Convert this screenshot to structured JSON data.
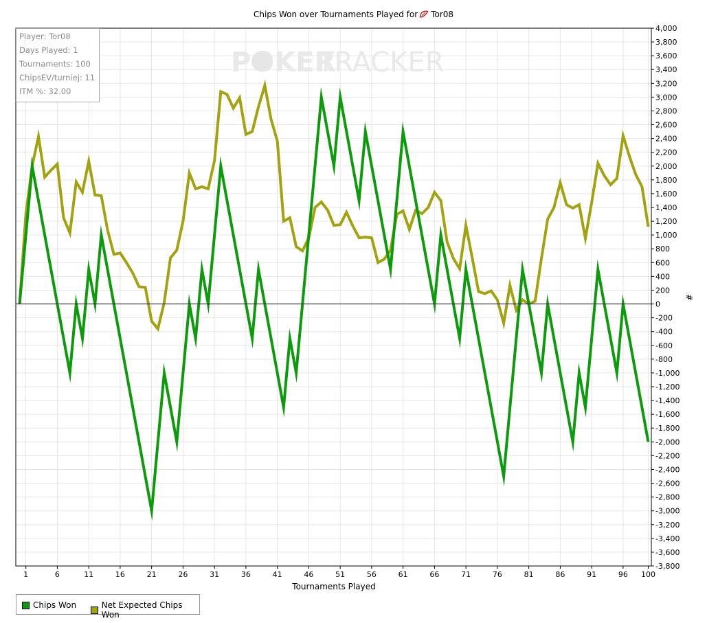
{
  "title": "Chips Won over Tournaments Played for",
  "player_name": "Tor08",
  "watermark": {
    "left": "POKER",
    "right": "TRACKER"
  },
  "stats": [
    "Player: Tor08",
    "Days Played: 1",
    "Tournaments: 100",
    "ChipsEV/turniej: 11",
    "ITM %: 32.00"
  ],
  "legend": [
    {
      "label": "Chips Won",
      "color": "#0d9b0d"
    },
    {
      "label": "Net Expected Chips Won",
      "color": "#a3a312"
    }
  ],
  "colors": {
    "axis": "#000000",
    "grid": "#e6e6e6",
    "zero_line": "#000000",
    "stats_text": "#8c8c8c"
  },
  "chart_data": {
    "type": "line",
    "title": "Chips Won over Tournaments Played for Tor08",
    "xlabel": "Tournaments Played",
    "ylabel": "#",
    "xlim": [
      0,
      101
    ],
    "ylim": [
      -3800,
      4000
    ],
    "x_ticks": [
      1,
      6,
      11,
      16,
      21,
      26,
      31,
      36,
      41,
      46,
      51,
      56,
      61,
      66,
      71,
      76,
      81,
      86,
      91,
      96,
      100
    ],
    "y_ticks": [
      4000,
      3800,
      3600,
      3400,
      3200,
      3000,
      2800,
      2600,
      2400,
      2200,
      2000,
      1800,
      1600,
      1400,
      1200,
      1000,
      800,
      600,
      400,
      200,
      0,
      -200,
      -400,
      -600,
      -800,
      -1000,
      -1200,
      -1400,
      -1600,
      -1800,
      -2000,
      -2200,
      -2400,
      -2600,
      -2800,
      -3000,
      -3200,
      -3400,
      -3600,
      -3800
    ],
    "y_tick_labels": [
      "4,000",
      "3,800",
      "3,600",
      "3,400",
      "3,200",
      "3,000",
      "2,800",
      "2,600",
      "2,400",
      "2,200",
      "2,000",
      "1,800",
      "1,600",
      "1,400",
      "1,200",
      "1,000",
      "800",
      "600",
      "400",
      "200",
      "0",
      "-200",
      "-400",
      "-600",
      "-800",
      "-1,000",
      "-1,200",
      "-1,400",
      "-1,600",
      "-1,800",
      "-2,000",
      "-2,200",
      "-2,400",
      "-2,600",
      "-2,800",
      "-3,000",
      "-3,200",
      "-3,400",
      "-3,600",
      "-3,800"
    ],
    "grid": true,
    "legend_position": "bottom-left",
    "series": [
      {
        "name": "Chips Won",
        "color": "#0d9b0d",
        "points": [
          [
            0,
            0
          ],
          [
            2,
            2000
          ],
          [
            8,
            -1000
          ],
          [
            9,
            0
          ],
          [
            10,
            -500
          ],
          [
            11,
            500
          ],
          [
            12,
            0
          ],
          [
            13,
            1000
          ],
          [
            21,
            -3000
          ],
          [
            23,
            -1000
          ],
          [
            25,
            -2000
          ],
          [
            27,
            0
          ],
          [
            28,
            -500
          ],
          [
            29,
            500
          ],
          [
            30,
            0
          ],
          [
            32,
            2000
          ],
          [
            37,
            -500
          ],
          [
            38,
            500
          ],
          [
            42,
            -1500
          ],
          [
            43,
            -500
          ],
          [
            44,
            -1000
          ],
          [
            48,
            3000
          ],
          [
            50,
            2000
          ],
          [
            51,
            3000
          ],
          [
            54,
            1500
          ],
          [
            55,
            2500
          ],
          [
            59,
            500
          ],
          [
            61,
            2500
          ],
          [
            66,
            0
          ],
          [
            67,
            1000
          ],
          [
            70,
            -500
          ],
          [
            71,
            500
          ],
          [
            77,
            -2500
          ],
          [
            80,
            500
          ],
          [
            83,
            -1000
          ],
          [
            84,
            0
          ],
          [
            88,
            -2000
          ],
          [
            89,
            -1000
          ],
          [
            90,
            -1500
          ],
          [
            92,
            500
          ],
          [
            95,
            -1000
          ],
          [
            96,
            0
          ],
          [
            100,
            -2000
          ]
        ]
      },
      {
        "name": "Net Expected Chips Won",
        "color": "#a3a312",
        "points": [
          [
            0,
            0
          ],
          [
            1,
            1300
          ],
          [
            2,
            2000
          ],
          [
            3,
            2430
          ],
          [
            4,
            1840
          ],
          [
            5,
            1940
          ],
          [
            6,
            2030
          ],
          [
            7,
            1250
          ],
          [
            8,
            1030
          ],
          [
            9,
            1770
          ],
          [
            10,
            1620
          ],
          [
            11,
            2070
          ],
          [
            12,
            1580
          ],
          [
            13,
            1570
          ],
          [
            14,
            1070
          ],
          [
            15,
            720
          ],
          [
            16,
            740
          ],
          [
            17,
            600
          ],
          [
            18,
            450
          ],
          [
            19,
            250
          ],
          [
            20,
            240
          ],
          [
            21,
            -250
          ],
          [
            22,
            -360
          ],
          [
            23,
            20
          ],
          [
            24,
            670
          ],
          [
            25,
            780
          ],
          [
            26,
            1200
          ],
          [
            27,
            1900
          ],
          [
            28,
            1670
          ],
          [
            29,
            1700
          ],
          [
            30,
            1670
          ],
          [
            31,
            2080
          ],
          [
            32,
            3080
          ],
          [
            33,
            3040
          ],
          [
            34,
            2840
          ],
          [
            35,
            2990
          ],
          [
            36,
            2460
          ],
          [
            37,
            2500
          ],
          [
            38,
            2860
          ],
          [
            39,
            3170
          ],
          [
            40,
            2680
          ],
          [
            41,
            2360
          ],
          [
            42,
            1200
          ],
          [
            43,
            1250
          ],
          [
            44,
            830
          ],
          [
            45,
            770
          ],
          [
            46,
            960
          ],
          [
            47,
            1400
          ],
          [
            48,
            1480
          ],
          [
            49,
            1360
          ],
          [
            50,
            1140
          ],
          [
            51,
            1150
          ],
          [
            52,
            1330
          ],
          [
            53,
            1130
          ],
          [
            54,
            960
          ],
          [
            55,
            970
          ],
          [
            56,
            960
          ],
          [
            57,
            600
          ],
          [
            58,
            650
          ],
          [
            59,
            780
          ],
          [
            60,
            1300
          ],
          [
            61,
            1350
          ],
          [
            62,
            1080
          ],
          [
            63,
            1360
          ],
          [
            64,
            1310
          ],
          [
            65,
            1400
          ],
          [
            66,
            1620
          ],
          [
            67,
            1500
          ],
          [
            68,
            900
          ],
          [
            69,
            660
          ],
          [
            70,
            510
          ],
          [
            71,
            1140
          ],
          [
            72,
            670
          ],
          [
            73,
            180
          ],
          [
            74,
            150
          ],
          [
            75,
            190
          ],
          [
            76,
            60
          ],
          [
            77,
            -280
          ],
          [
            78,
            270
          ],
          [
            79,
            -90
          ],
          [
            80,
            60
          ],
          [
            81,
            0
          ],
          [
            82,
            40
          ],
          [
            83,
            660
          ],
          [
            84,
            1230
          ],
          [
            85,
            1400
          ],
          [
            86,
            1760
          ],
          [
            87,
            1440
          ],
          [
            88,
            1390
          ],
          [
            89,
            1440
          ],
          [
            90,
            950
          ],
          [
            91,
            1470
          ],
          [
            92,
            2040
          ],
          [
            93,
            1860
          ],
          [
            94,
            1730
          ],
          [
            95,
            1820
          ],
          [
            96,
            2440
          ],
          [
            97,
            2140
          ],
          [
            98,
            1880
          ],
          [
            99,
            1700
          ],
          [
            100,
            1120
          ]
        ]
      }
    ]
  }
}
